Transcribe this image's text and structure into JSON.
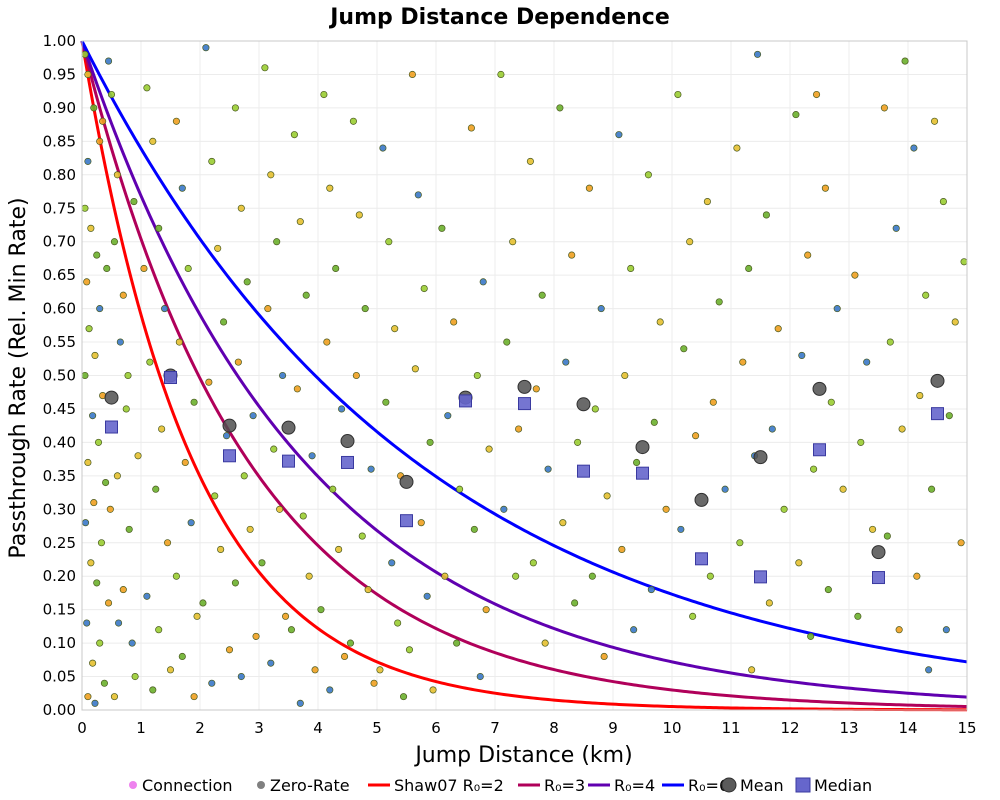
{
  "chart_data": {
    "type": "scatter",
    "title": "Jump Distance Dependence",
    "xlabel": "Jump Distance (km)",
    "ylabel": "Passthrough Rate (Rel. Min Rate)",
    "xlim": [
      0,
      15
    ],
    "ylim": [
      0,
      1
    ],
    "x_ticks": [
      "0",
      "1",
      "2",
      "3",
      "4",
      "5",
      "6",
      "7",
      "8",
      "9",
      "10",
      "11",
      "12",
      "13",
      "14",
      "15"
    ],
    "y_ticks": [
      "0.00",
      "0.05",
      "0.10",
      "0.15",
      "0.20",
      "0.25",
      "0.30",
      "0.35",
      "0.40",
      "0.45",
      "0.50",
      "0.55",
      "0.60",
      "0.65",
      "0.70",
      "0.75",
      "0.80",
      "0.85",
      "0.90",
      "0.95",
      "1.00"
    ],
    "grid": true,
    "legend_position": "bottom",
    "legend": [
      {
        "label": "Connection",
        "marker": "dot",
        "color": "#ee82ee"
      },
      {
        "label": "Zero-Rate",
        "marker": "dot",
        "color": "#808080"
      },
      {
        "label": "Shaw07 R₀=2",
        "marker": "line",
        "color": "#ff0000"
      },
      {
        "label": "R₀=3",
        "marker": "line",
        "color": "#b0005a"
      },
      {
        "label": "R₀=4",
        "marker": "line",
        "color": "#6000b0"
      },
      {
        "label": "R₀=6",
        "marker": "line",
        "color": "#0000ff"
      },
      {
        "label": "Mean",
        "marker": "circle",
        "color": "#5a5a5a"
      },
      {
        "label": "Median",
        "marker": "square",
        "color": "#6666cc"
      }
    ],
    "curves": [
      {
        "name": "Shaw07 R₀=2",
        "color": "#ff0000",
        "R0": 2
      },
      {
        "name": "R₀=3",
        "color": "#b0005a",
        "R0": 3
      },
      {
        "name": "R₀=4",
        "color": "#6000b0",
        "R0": 4
      },
      {
        "name": "R₀=6",
        "color": "#0000ff",
        "R0": 6
      }
    ],
    "mean": {
      "x": [
        0.5,
        1.5,
        2.5,
        3.5,
        4.5,
        5.5,
        6.5,
        7.5,
        8.5,
        9.5,
        10.5,
        11.5,
        12.5,
        13.5,
        14.5
      ],
      "y": [
        0.467,
        0.5,
        0.425,
        0.422,
        0.402,
        0.341,
        0.467,
        0.483,
        0.457,
        0.393,
        0.314,
        0.378,
        0.48,
        0.236,
        0.492
      ]
    },
    "median": {
      "x": [
        0.5,
        1.5,
        2.5,
        3.5,
        4.5,
        5.5,
        6.5,
        7.5,
        8.5,
        9.5,
        10.5,
        11.5,
        12.5,
        13.5,
        14.5
      ],
      "y": [
        0.423,
        0.497,
        0.38,
        0.372,
        0.37,
        0.283,
        0.462,
        0.458,
        0.357,
        0.354,
        0.226,
        0.199,
        0.389,
        0.198,
        0.443
      ]
    },
    "scatter": {
      "points": [
        [
          0.05,
          0.98
        ],
        [
          0.1,
          0.95
        ],
        [
          0.2,
          0.9
        ],
        [
          0.3,
          0.85
        ],
        [
          0.1,
          0.82
        ],
        [
          0.05,
          0.75
        ],
        [
          0.15,
          0.72
        ],
        [
          0.25,
          0.68
        ],
        [
          0.08,
          0.64
        ],
        [
          0.3,
          0.6
        ],
        [
          0.12,
          0.57
        ],
        [
          0.22,
          0.53
        ],
        [
          0.05,
          0.5
        ],
        [
          0.35,
          0.47
        ],
        [
          0.18,
          0.44
        ],
        [
          0.28,
          0.4
        ],
        [
          0.1,
          0.37
        ],
        [
          0.4,
          0.34
        ],
        [
          0.2,
          0.31
        ],
        [
          0.06,
          0.28
        ],
        [
          0.33,
          0.25
        ],
        [
          0.15,
          0.22
        ],
        [
          0.25,
          0.19
        ],
        [
          0.45,
          0.16
        ],
        [
          0.08,
          0.13
        ],
        [
          0.3,
          0.1
        ],
        [
          0.18,
          0.07
        ],
        [
          0.38,
          0.04
        ],
        [
          0.1,
          0.02
        ],
        [
          0.22,
          0.01
        ],
        [
          0.5,
          0.92
        ],
        [
          0.6,
          0.8
        ],
        [
          0.55,
          0.7
        ],
        [
          0.7,
          0.62
        ],
        [
          0.65,
          0.55
        ],
        [
          0.75,
          0.45
        ],
        [
          0.6,
          0.35
        ],
        [
          0.8,
          0.27
        ],
        [
          0.7,
          0.18
        ],
        [
          0.85,
          0.1
        ],
        [
          0.9,
          0.05
        ],
        [
          0.55,
          0.02
        ],
        [
          0.42,
          0.66
        ],
        [
          0.48,
          0.3
        ],
        [
          0.62,
          0.13
        ],
        [
          0.78,
          0.5
        ],
        [
          0.95,
          0.38
        ],
        [
          0.88,
          0.76
        ],
        [
          0.35,
          0.88
        ],
        [
          0.45,
          0.97
        ],
        [
          1.1,
          0.93
        ],
        [
          1.2,
          0.85
        ],
        [
          1.3,
          0.72
        ],
        [
          1.05,
          0.66
        ],
        [
          1.4,
          0.6
        ],
        [
          1.15,
          0.52
        ],
        [
          1.35,
          0.42
        ],
        [
          1.25,
          0.33
        ],
        [
          1.45,
          0.25
        ],
        [
          1.1,
          0.17
        ],
        [
          1.3,
          0.12
        ],
        [
          1.5,
          0.06
        ],
        [
          1.2,
          0.03
        ],
        [
          1.6,
          0.88
        ],
        [
          1.7,
          0.78
        ],
        [
          1.8,
          0.66
        ],
        [
          1.65,
          0.55
        ],
        [
          1.9,
          0.46
        ],
        [
          1.75,
          0.37
        ],
        [
          1.85,
          0.28
        ],
        [
          1.6,
          0.2
        ],
        [
          1.95,
          0.14
        ],
        [
          1.7,
          0.08
        ],
        [
          1.9,
          0.02
        ],
        [
          2.1,
          0.99
        ],
        [
          2.2,
          0.82
        ],
        [
          2.3,
          0.69
        ],
        [
          2.4,
          0.58
        ],
        [
          2.15,
          0.49
        ],
        [
          2.45,
          0.41
        ],
        [
          2.25,
          0.32
        ],
        [
          2.35,
          0.24
        ],
        [
          2.05,
          0.16
        ],
        [
          2.5,
          0.09
        ],
        [
          2.2,
          0.04
        ],
        [
          2.6,
          0.9
        ],
        [
          2.7,
          0.75
        ],
        [
          2.8,
          0.64
        ],
        [
          2.65,
          0.52
        ],
        [
          2.9,
          0.44
        ],
        [
          2.75,
          0.35
        ],
        [
          2.85,
          0.27
        ],
        [
          2.6,
          0.19
        ],
        [
          2.95,
          0.11
        ],
        [
          2.7,
          0.05
        ],
        [
          3.1,
          0.96
        ],
        [
          3.2,
          0.8
        ],
        [
          3.3,
          0.7
        ],
        [
          3.15,
          0.6
        ],
        [
          3.4,
          0.5
        ],
        [
          3.25,
          0.39
        ],
        [
          3.35,
          0.3
        ],
        [
          3.05,
          0.22
        ],
        [
          3.45,
          0.14
        ],
        [
          3.2,
          0.07
        ],
        [
          3.6,
          0.86
        ],
        [
          3.7,
          0.73
        ],
        [
          3.8,
          0.62
        ],
        [
          3.65,
          0.48
        ],
        [
          3.9,
          0.38
        ],
        [
          3.75,
          0.29
        ],
        [
          3.85,
          0.2
        ],
        [
          3.55,
          0.12
        ],
        [
          3.95,
          0.06
        ],
        [
          3.7,
          0.01
        ],
        [
          4.1,
          0.92
        ],
        [
          4.2,
          0.78
        ],
        [
          4.3,
          0.66
        ],
        [
          4.15,
          0.55
        ],
        [
          4.4,
          0.45
        ],
        [
          4.25,
          0.33
        ],
        [
          4.35,
          0.24
        ],
        [
          4.05,
          0.15
        ],
        [
          4.45,
          0.08
        ],
        [
          4.2,
          0.03
        ],
        [
          4.6,
          0.88
        ],
        [
          4.7,
          0.74
        ],
        [
          4.8,
          0.6
        ],
        [
          4.65,
          0.5
        ],
        [
          4.9,
          0.36
        ],
        [
          4.75,
          0.26
        ],
        [
          4.85,
          0.18
        ],
        [
          4.55,
          0.1
        ],
        [
          4.95,
          0.04
        ],
        [
          5.1,
          0.84
        ],
        [
          5.2,
          0.7
        ],
        [
          5.3,
          0.57
        ],
        [
          5.15,
          0.46
        ],
        [
          5.4,
          0.35
        ],
        [
          5.25,
          0.22
        ],
        [
          5.35,
          0.13
        ],
        [
          5.05,
          0.06
        ],
        [
          5.45,
          0.02
        ],
        [
          5.6,
          0.95
        ],
        [
          5.7,
          0.77
        ],
        [
          5.8,
          0.63
        ],
        [
          5.65,
          0.51
        ],
        [
          5.9,
          0.4
        ],
        [
          5.75,
          0.28
        ],
        [
          5.85,
          0.17
        ],
        [
          5.55,
          0.09
        ],
        [
          5.95,
          0.03
        ],
        [
          6.1,
          0.72
        ],
        [
          6.3,
          0.58
        ],
        [
          6.2,
          0.44
        ],
        [
          6.4,
          0.33
        ],
        [
          6.15,
          0.2
        ],
        [
          6.35,
          0.1
        ],
        [
          6.6,
          0.87
        ],
        [
          6.8,
          0.64
        ],
        [
          6.7,
          0.5
        ],
        [
          6.9,
          0.39
        ],
        [
          6.65,
          0.27
        ],
        [
          6.85,
          0.15
        ],
        [
          6.75,
          0.05
        ],
        [
          7.1,
          0.95
        ],
        [
          7.3,
          0.7
        ],
        [
          7.2,
          0.55
        ],
        [
          7.4,
          0.42
        ],
        [
          7.15,
          0.3
        ],
        [
          7.35,
          0.2
        ],
        [
          7.6,
          0.82
        ],
        [
          7.8,
          0.62
        ],
        [
          7.7,
          0.48
        ],
        [
          7.9,
          0.36
        ],
        [
          7.65,
          0.22
        ],
        [
          7.85,
          0.1
        ],
        [
          8.1,
          0.9
        ],
        [
          8.3,
          0.68
        ],
        [
          8.2,
          0.52
        ],
        [
          8.4,
          0.4
        ],
        [
          8.15,
          0.28
        ],
        [
          8.35,
          0.16
        ],
        [
          8.6,
          0.78
        ],
        [
          8.8,
          0.6
        ],
        [
          8.7,
          0.45
        ],
        [
          8.9,
          0.32
        ],
        [
          8.65,
          0.2
        ],
        [
          8.85,
          0.08
        ],
        [
          9.1,
          0.86
        ],
        [
          9.3,
          0.66
        ],
        [
          9.2,
          0.5
        ],
        [
          9.4,
          0.37
        ],
        [
          9.15,
          0.24
        ],
        [
          9.35,
          0.12
        ],
        [
          9.6,
          0.8
        ],
        [
          9.8,
          0.58
        ],
        [
          9.7,
          0.43
        ],
        [
          9.9,
          0.3
        ],
        [
          9.65,
          0.18
        ],
        [
          10.1,
          0.92
        ],
        [
          10.3,
          0.7
        ],
        [
          10.2,
          0.54
        ],
        [
          10.4,
          0.41
        ],
        [
          10.15,
          0.27
        ],
        [
          10.35,
          0.14
        ],
        [
          10.6,
          0.76
        ],
        [
          10.8,
          0.61
        ],
        [
          10.7,
          0.46
        ],
        [
          10.9,
          0.33
        ],
        [
          10.65,
          0.2
        ],
        [
          11.1,
          0.84
        ],
        [
          11.3,
          0.66
        ],
        [
          11.2,
          0.52
        ],
        [
          11.4,
          0.38
        ],
        [
          11.15,
          0.25
        ],
        [
          11.35,
          0.06
        ],
        [
          11.6,
          0.74
        ],
        [
          11.8,
          0.57
        ],
        [
          11.7,
          0.42
        ],
        [
          11.9,
          0.3
        ],
        [
          11.65,
          0.16
        ],
        [
          12.1,
          0.89
        ],
        [
          12.3,
          0.68
        ],
        [
          12.2,
          0.53
        ],
        [
          12.4,
          0.36
        ],
        [
          12.15,
          0.22
        ],
        [
          12.35,
          0.11
        ],
        [
          12.6,
          0.78
        ],
        [
          12.8,
          0.6
        ],
        [
          12.7,
          0.46
        ],
        [
          12.9,
          0.33
        ],
        [
          12.65,
          0.18
        ],
        [
          13.1,
          0.65
        ],
        [
          13.3,
          0.52
        ],
        [
          13.2,
          0.4
        ],
        [
          13.4,
          0.27
        ],
        [
          13.15,
          0.14
        ],
        [
          13.6,
          0.9
        ],
        [
          13.8,
          0.72
        ],
        [
          13.7,
          0.55
        ],
        [
          13.9,
          0.42
        ],
        [
          13.65,
          0.26
        ],
        [
          13.85,
          0.12
        ],
        [
          14.1,
          0.84
        ],
        [
          14.3,
          0.62
        ],
        [
          14.2,
          0.47
        ],
        [
          14.4,
          0.33
        ],
        [
          14.15,
          0.2
        ],
        [
          14.35,
          0.06
        ],
        [
          14.6,
          0.76
        ],
        [
          14.8,
          0.58
        ],
        [
          14.7,
          0.44
        ],
        [
          14.9,
          0.25
        ],
        [
          14.65,
          0.12
        ],
        [
          14.95,
          0.67
        ],
        [
          14.45,
          0.88
        ],
        [
          13.95,
          0.97
        ],
        [
          12.45,
          0.92
        ],
        [
          11.45,
          0.98
        ]
      ],
      "colors": [
        "#9acd32",
        "#e6c030",
        "#6cb02c",
        "#f0a020",
        "#3a78c8"
      ]
    }
  }
}
